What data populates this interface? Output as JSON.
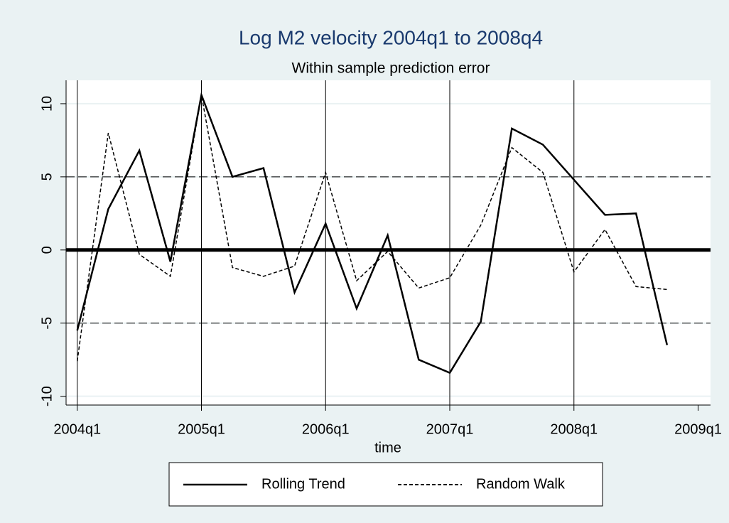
{
  "chart_data": {
    "type": "line",
    "title": "Log M2 velocity 2004q1 to 2008q4",
    "subtitle": "Within sample prediction error",
    "x_label": "time",
    "x": [
      2004,
      2004.25,
      2004.5,
      2004.75,
      2005,
      2005.25,
      2005.5,
      2005.75,
      2006,
      2006.25,
      2006.5,
      2006.75,
      2007,
      2007.25,
      2007.5,
      2007.75,
      2008,
      2008.25,
      2008.5,
      2008.75
    ],
    "series": [
      {
        "name": "Rolling Trend",
        "color": "#000000",
        "dash": "solid",
        "values": [
          -5.5,
          2.8,
          6.8,
          -0.8,
          10.6,
          5.0,
          5.6,
          -2.9,
          1.8,
          -4.0,
          1.0,
          -7.5,
          -8.4,
          -4.9,
          8.3,
          7.2,
          4.8,
          2.4,
          2.5,
          -6.5
        ]
      },
      {
        "name": "Random Walk",
        "color": "#000000",
        "dash": "dashed",
        "values": [
          -7.6,
          8.0,
          -0.3,
          -1.8,
          10.6,
          -1.2,
          -1.8,
          -1.1,
          5.3,
          -2.1,
          -0.1,
          -2.6,
          -1.9,
          1.7,
          7.0,
          5.3,
          -1.5,
          1.4,
          -2.5,
          -2.7
        ]
      }
    ],
    "xlim": [
      2003.91,
      2009.1
    ],
    "ylim": [
      -10.6,
      11.6
    ],
    "xticks": [
      {
        "value": 2004,
        "label": "2004q1"
      },
      {
        "value": 2005,
        "label": "2005q1"
      },
      {
        "value": 2006,
        "label": "2006q1"
      },
      {
        "value": 2007,
        "label": "2007q1"
      },
      {
        "value": 2008,
        "label": "2008q1"
      },
      {
        "value": 2009,
        "label": "2009q1"
      }
    ],
    "yticks": [
      -10,
      -5,
      0,
      5,
      10
    ],
    "grid": true,
    "xlines": [
      2004,
      2005,
      2006,
      2007,
      2008
    ],
    "ylines": [
      {
        "value": 0,
        "style": "thick"
      },
      {
        "value": 5,
        "style": "dashed"
      },
      {
        "value": -5,
        "style": "dashed"
      }
    ],
    "legend": "bottom"
  }
}
